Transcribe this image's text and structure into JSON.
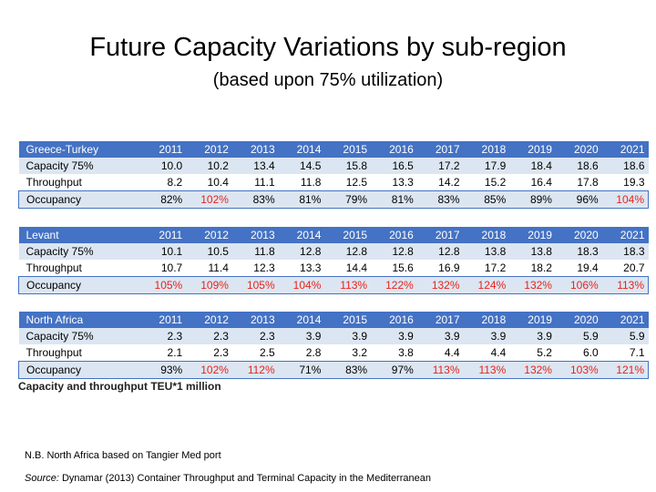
{
  "title": "Future Capacity Variations by sub-region",
  "subtitle": "(based upon 75% utilization)",
  "columns": [
    "2011",
    "2012",
    "2013",
    "2014",
    "2015",
    "2016",
    "2017",
    "2018",
    "2019",
    "2020",
    "2021"
  ],
  "tables": [
    {
      "region": "Greece-Turkey",
      "rows": [
        {
          "label": "Capacity 75%",
          "values": [
            "10.0",
            "10.2",
            "13.4",
            "14.5",
            "15.8",
            "16.5",
            "17.2",
            "17.9",
            "18.4",
            "18.6",
            "18.6"
          ]
        },
        {
          "label": "Throughput",
          "values": [
            "8.2",
            "10.4",
            "11.1",
            "11.8",
            "12.5",
            "13.3",
            "14.2",
            "15.2",
            "16.4",
            "17.8",
            "19.3"
          ]
        },
        {
          "label": "Occupancy",
          "values": [
            "82%",
            "102%",
            "83%",
            "81%",
            "79%",
            "81%",
            "83%",
            "85%",
            "89%",
            "96%",
            "104%"
          ]
        }
      ]
    },
    {
      "region": "Levant",
      "rows": [
        {
          "label": "Capacity 75%",
          "values": [
            "10.1",
            "10.5",
            "11.8",
            "12.8",
            "12.8",
            "12.8",
            "12.8",
            "13.8",
            "13.8",
            "18.3",
            "18.3"
          ]
        },
        {
          "label": "Throughput",
          "values": [
            "10.7",
            "11.4",
            "12.3",
            "13.3",
            "14.4",
            "15.6",
            "16.9",
            "17.2",
            "18.2",
            "19.4",
            "20.7"
          ]
        },
        {
          "label": "Occupancy",
          "values": [
            "105%",
            "109%",
            "105%",
            "104%",
            "113%",
            "122%",
            "132%",
            "124%",
            "132%",
            "106%",
            "113%"
          ]
        }
      ]
    },
    {
      "region": "North Africa",
      "rows": [
        {
          "label": "Capacity 75%",
          "values": [
            "2.3",
            "2.3",
            "2.3",
            "3.9",
            "3.9",
            "3.9",
            "3.9",
            "3.9",
            "3.9",
            "5.9",
            "5.9"
          ]
        },
        {
          "label": "Throughput",
          "values": [
            "2.1",
            "2.3",
            "2.5",
            "2.8",
            "3.2",
            "3.8",
            "4.4",
            "4.4",
            "5.2",
            "6.0",
            "7.1"
          ]
        },
        {
          "label": "Occupancy",
          "values": [
            "93%",
            "102%",
            "112%",
            "71%",
            "83%",
            "97%",
            "113%",
            "113%",
            "132%",
            "103%",
            "121%"
          ]
        }
      ]
    }
  ],
  "unit_note": "Capacity and throughput TEU*1 million",
  "footnote": "N.B. North Africa based on Tangier Med port",
  "source_label": "Source:",
  "source_text": "Dynamar (2013) Container Throughput and Terminal Capacity in the Mediterranean",
  "colors": {
    "header_bg": "#4472c4",
    "stripe": "#dce6f2",
    "over_capacity": "#e8231b"
  }
}
